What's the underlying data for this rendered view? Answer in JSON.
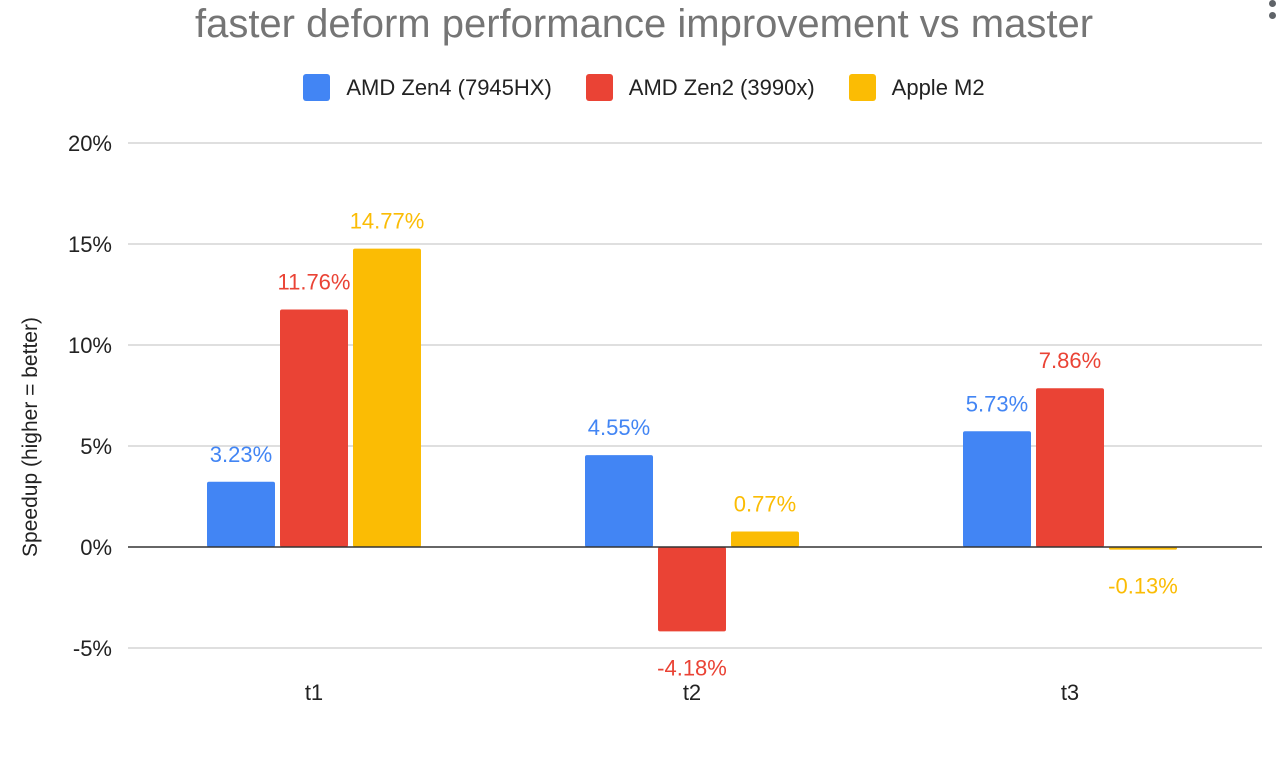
{
  "chart_data": {
    "type": "bar",
    "title": "faster deform performance improvement vs master",
    "xlabel": "",
    "ylabel": "Speedup (higher = better)",
    "categories": [
      "t1",
      "t2",
      "t3"
    ],
    "ylim": [
      -5,
      20
    ],
    "yticks": [
      -5,
      0,
      5,
      10,
      15,
      20
    ],
    "ytick_labels": [
      "-5%",
      "0%",
      "5%",
      "10%",
      "15%",
      "20%"
    ],
    "grid": true,
    "legend_position": "top-center",
    "series": [
      {
        "name": "AMD Zen4 (7945HX)",
        "color": "#4285F4",
        "values": [
          3.23,
          4.55,
          5.73
        ],
        "labels": [
          "3.23%",
          "4.55%",
          "5.73%"
        ]
      },
      {
        "name": "AMD Zen2 (3990x)",
        "color": "#EA4335",
        "values": [
          11.76,
          -4.18,
          7.86
        ],
        "labels": [
          "11.76%",
          "-4.18%",
          "7.86%"
        ]
      },
      {
        "name": "Apple M2",
        "color": "#FBBC04",
        "values": [
          14.77,
          0.77,
          -0.13
        ],
        "labels": [
          "14.77%",
          "0.77%",
          "-0.13%"
        ]
      }
    ]
  },
  "menu_icon": "more-vertical-icon"
}
